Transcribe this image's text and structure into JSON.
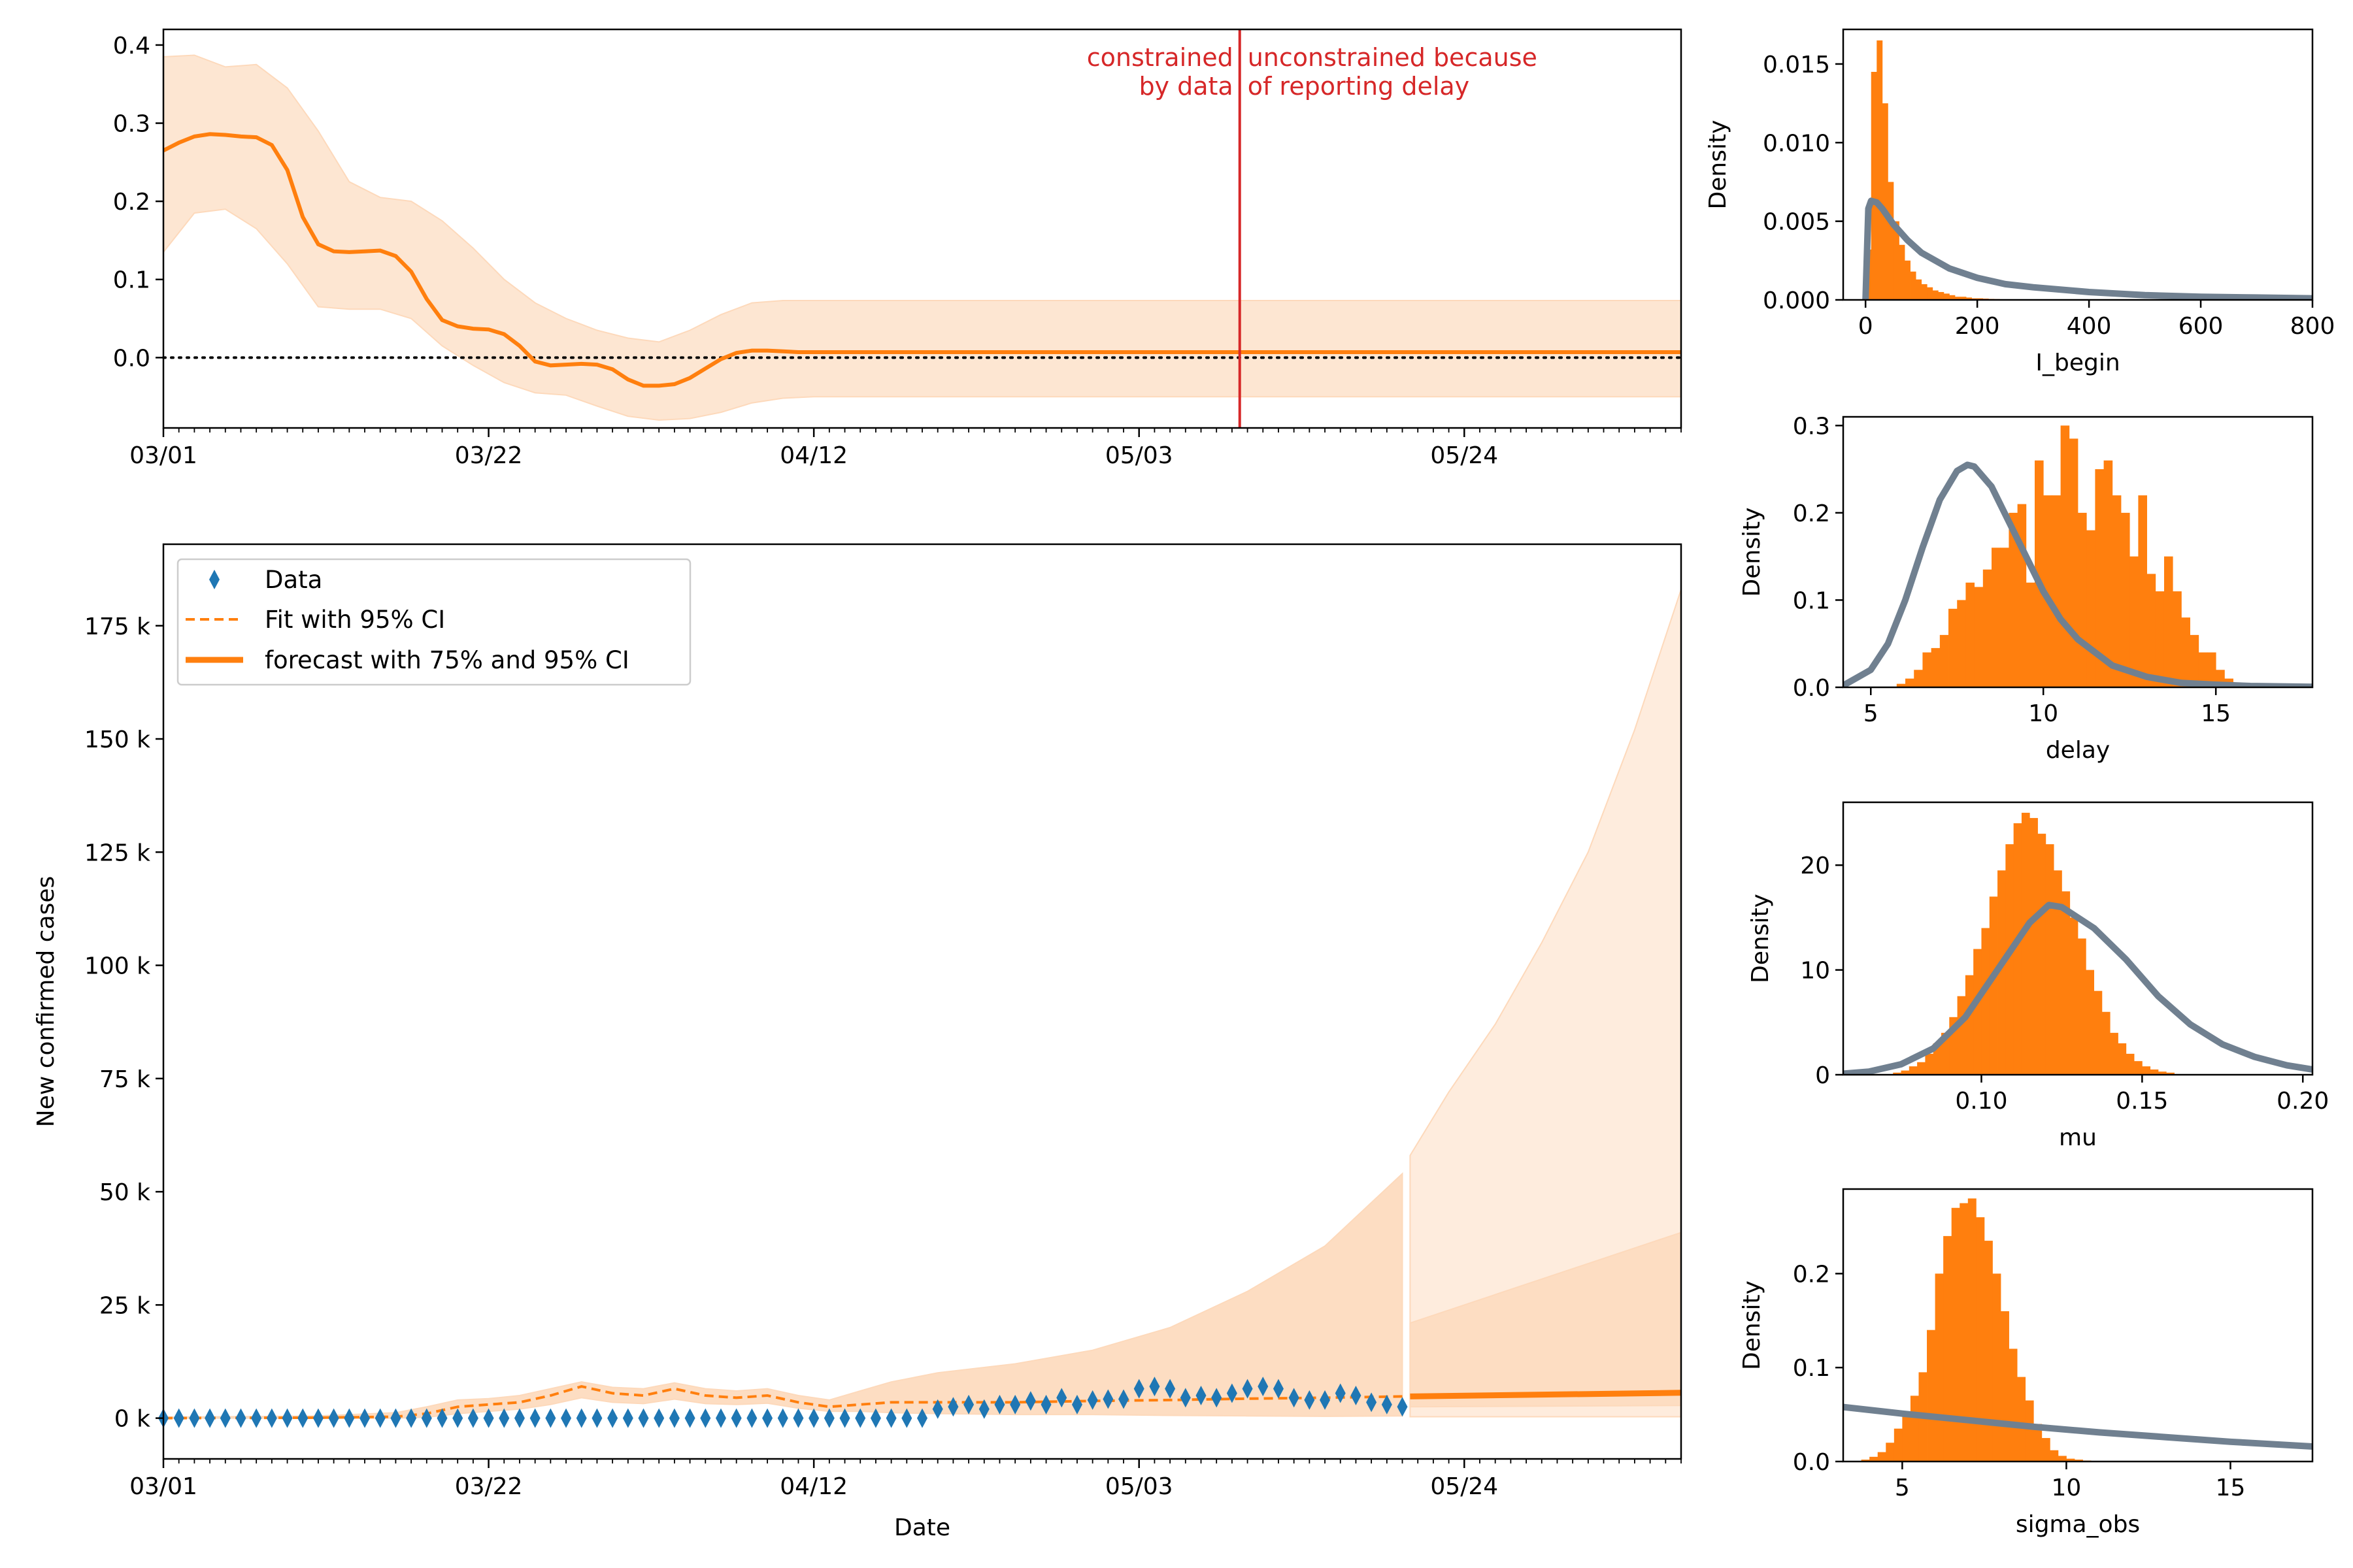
{
  "colors": {
    "orange": "#ff7f0e",
    "band": "#fdd9bb",
    "band_light": "#fde6d2",
    "data_marker": "#1f77b4",
    "prior_line": "#708090",
    "annotation": "#d62728",
    "text": "#000000"
  },
  "chart_data": [
    {
      "id": "growth_rate",
      "type": "line",
      "x_ticks": [
        "03/01",
        "03/22",
        "04/12",
        "05/03",
        "05/24"
      ],
      "x_range_days": [
        0,
        98
      ],
      "ylim": [
        -0.09,
        0.42
      ],
      "y_ticks": [
        "0.4",
        "0.3",
        "0.2",
        "0.1",
        "0.0"
      ],
      "y_tick_values": [
        0.4,
        0.3,
        0.2,
        0.1,
        0.0
      ],
      "zero_line": true,
      "marker_line_day": 69.5,
      "annotation_left": [
        "constrained",
        "by data"
      ],
      "annotation_right": [
        "unconstrained because",
        "of reporting delay"
      ],
      "series": [
        {
          "kind": "median",
          "x": [
            0,
            1,
            2,
            3,
            4,
            5,
            6,
            7,
            8,
            9,
            10,
            11,
            12,
            13,
            14,
            15,
            16,
            17,
            18,
            19,
            20,
            21,
            22,
            23,
            24,
            25,
            26,
            27,
            28,
            29,
            30,
            31,
            32,
            33,
            34,
            35,
            36,
            37,
            38,
            39,
            40,
            41,
            42,
            43,
            98
          ],
          "y": [
            0.265,
            0.275,
            0.283,
            0.286,
            0.285,
            0.283,
            0.282,
            0.272,
            0.24,
            0.18,
            0.145,
            0.136,
            0.135,
            0.136,
            0.137,
            0.13,
            0.11,
            0.075,
            0.048,
            0.04,
            0.037,
            0.036,
            0.03,
            0.015,
            -0.005,
            -0.01,
            -0.009,
            -0.008,
            -0.009,
            -0.015,
            -0.028,
            -0.036,
            -0.036,
            -0.034,
            -0.026,
            -0.014,
            -0.002,
            0.006,
            0.009,
            0.009,
            0.008,
            0.007,
            0.007,
            0.007,
            0.007
          ]
        },
        {
          "kind": "ci95",
          "x": [
            0,
            2,
            4,
            6,
            8,
            10,
            12,
            14,
            16,
            18,
            20,
            22,
            24,
            26,
            28,
            30,
            32,
            34,
            36,
            38,
            40,
            42,
            44,
            50,
            98
          ],
          "upper": [
            0.385,
            0.387,
            0.372,
            0.375,
            0.345,
            0.29,
            0.225,
            0.205,
            0.2,
            0.175,
            0.14,
            0.1,
            0.07,
            0.05,
            0.035,
            0.025,
            0.02,
            0.035,
            0.055,
            0.07,
            0.073,
            0.073,
            0.073,
            0.073,
            0.073
          ],
          "lower": [
            0.135,
            0.185,
            0.19,
            0.165,
            0.12,
            0.065,
            0.062,
            0.062,
            0.05,
            0.015,
            -0.01,
            -0.032,
            -0.045,
            -0.048,
            -0.062,
            -0.075,
            -0.08,
            -0.078,
            -0.07,
            -0.058,
            -0.052,
            -0.05,
            -0.05,
            -0.05,
            -0.05
          ]
        }
      ]
    },
    {
      "id": "new_cases",
      "type": "line",
      "x_ticks": [
        "03/01",
        "03/22",
        "04/12",
        "05/03",
        "05/24"
      ],
      "xlabel": "Date",
      "ylabel": "New confirmed cases",
      "x_range_days": [
        0,
        98
      ],
      "ylim": [
        -9000,
        193000
      ],
      "y_ticks": [
        "175 k",
        "150 k",
        "125 k",
        "100 k",
        "75 k",
        "50 k",
        "25 k",
        "0 k"
      ],
      "y_tick_values": [
        175000,
        150000,
        125000,
        100000,
        75000,
        50000,
        25000,
        0
      ],
      "legend": [
        "Data",
        "Fit with 95% CI",
        "forecast with 75% and 95% CI"
      ],
      "data_points": {
        "x": [
          0,
          1,
          2,
          3,
          4,
          5,
          6,
          7,
          8,
          9,
          10,
          11,
          12,
          13,
          14,
          15,
          16,
          17,
          18,
          19,
          20,
          21,
          22,
          23,
          24,
          25,
          26,
          27,
          28,
          29,
          30,
          31,
          32,
          33,
          34,
          35,
          36,
          37,
          38,
          39,
          40,
          41,
          42,
          43,
          44,
          45,
          46,
          47,
          48,
          49,
          50,
          51,
          52,
          53,
          54,
          55,
          56,
          57,
          58,
          59,
          60,
          61,
          62,
          63,
          64,
          65,
          66,
          67,
          68,
          69,
          70,
          71,
          72,
          73,
          74,
          75,
          76,
          77,
          78,
          79,
          80
        ],
        "y": [
          0,
          0,
          0,
          0,
          0,
          0,
          0,
          0,
          0,
          0,
          0,
          0,
          0,
          0,
          0,
          0,
          0,
          0,
          0,
          0,
          0,
          0,
          0,
          0,
          0,
          0,
          0,
          0,
          0,
          0,
          0,
          0,
          0,
          0,
          0,
          0,
          0,
          0,
          0,
          0,
          0,
          0,
          0,
          0,
          0,
          0,
          0,
          0,
          0,
          0,
          2000,
          2500,
          3000,
          2000,
          3000,
          3000,
          3800,
          3000,
          4500,
          3000,
          4000,
          4200,
          4200,
          6500,
          7000,
          6500,
          4500,
          5000,
          4500,
          5500,
          6500,
          7000,
          6500,
          4500,
          4000,
          4000,
          5500,
          5000,
          3500,
          3000,
          2500
        ]
      },
      "fit": {
        "x": [
          0,
          10,
          15,
          17,
          19,
          21,
          23,
          25,
          27,
          29,
          31,
          33,
          35,
          37,
          39,
          41,
          43,
          45,
          47,
          50,
          55,
          60,
          65,
          70,
          75,
          80
        ],
        "median": [
          0,
          100,
          300,
          1000,
          2500,
          3000,
          3500,
          5000,
          7000,
          5500,
          5000,
          6500,
          5000,
          4500,
          5000,
          3500,
          2500,
          3000,
          3500,
          3500,
          3500,
          3800,
          4000,
          4300,
          4500,
          4800
        ],
        "upper": [
          200,
          500,
          1200,
          2500,
          4000,
          4300,
          5000,
          6500,
          8000,
          6800,
          6500,
          7800,
          6500,
          6000,
          6500,
          5000,
          4000,
          6000,
          8000,
          10000,
          12000,
          15000,
          20000,
          28000,
          38000,
          54000
        ],
        "lower": [
          0,
          0,
          0,
          200,
          1000,
          1500,
          2000,
          3000,
          4500,
          3500,
          3200,
          4200,
          3200,
          3000,
          3300,
          2200,
          1500,
          1500,
          1200,
          1000,
          800,
          800,
          600,
          500,
          400,
          500
        ]
      },
      "forecast": {
        "x": [
          80.5,
          98
        ],
        "median": [
          4800,
          5600
        ],
        "ci75_upper": [
          21000,
          41000
        ],
        "ci75_lower": [
          2500,
          2800
        ],
        "ci95_upper_x": [
          80.5,
          83,
          86,
          89,
          92,
          95,
          98
        ],
        "ci95_upper": [
          58000,
          72000,
          87000,
          105000,
          125000,
          152000,
          183000
        ],
        "ci95_lower": [
          300,
          300
        ]
      }
    },
    {
      "id": "I_begin",
      "type": "histogram",
      "xlabel": "I_begin",
      "ylabel": "Density",
      "xlim": [
        -40,
        800
      ],
      "ylim": [
        0,
        0.0172
      ],
      "x_ticks": [
        "0",
        "200",
        "400",
        "600",
        "800"
      ],
      "x_tick_values": [
        0,
        200,
        400,
        600,
        800
      ],
      "y_ticks": [
        "0.015",
        "0.010",
        "0.005",
        "0.000"
      ],
      "y_tick_values": [
        0.015,
        0.01,
        0.005,
        0.0
      ],
      "bin_width": 10,
      "bin_start": 0,
      "densities": [
        0.0032,
        0.0145,
        0.0165,
        0.0125,
        0.0075,
        0.005,
        0.0035,
        0.0025,
        0.0018,
        0.0013,
        0.001,
        0.0008,
        0.0006,
        0.0005,
        0.0004,
        0.0003,
        0.0002,
        0.0002,
        0.00015,
        0.0001,
        0.0001,
        8e-05,
        6e-05,
        5e-05,
        4e-05,
        3e-05,
        2e-05,
        2e-05
      ],
      "prior": {
        "x": [
          0,
          5,
          10,
          20,
          30,
          50,
          75,
          100,
          150,
          200,
          250,
          300,
          400,
          500,
          600,
          700,
          800
        ],
        "y": [
          0,
          0.0058,
          0.0063,
          0.0062,
          0.0058,
          0.0048,
          0.0038,
          0.003,
          0.002,
          0.0014,
          0.001,
          0.0008,
          0.0005,
          0.0003,
          0.0002,
          0.00015,
          0.0001
        ]
      }
    },
    {
      "id": "delay",
      "type": "histogram",
      "xlabel": "delay",
      "ylabel": "Density",
      "xlim": [
        4.2,
        17.8
      ],
      "ylim": [
        0,
        0.31
      ],
      "x_ticks": [
        "5",
        "10",
        "15"
      ],
      "x_tick_values": [
        5,
        10,
        15
      ],
      "y_ticks": [
        "0.3",
        "0.2",
        "0.1",
        "0.0"
      ],
      "y_tick_values": [
        0.3,
        0.2,
        0.1,
        0.0
      ],
      "bin_width": 0.25,
      "bin_start": 5.75,
      "densities": [
        0.004,
        0.01,
        0.02,
        0.04,
        0.045,
        0.06,
        0.09,
        0.1,
        0.12,
        0.115,
        0.135,
        0.16,
        0.16,
        0.2,
        0.21,
        0.12,
        0.26,
        0.22,
        0.22,
        0.3,
        0.285,
        0.2,
        0.18,
        0.25,
        0.26,
        0.22,
        0.2,
        0.15,
        0.22,
        0.13,
        0.11,
        0.15,
        0.11,
        0.08,
        0.06,
        0.04,
        0.04,
        0.02,
        0.01,
        0.005
      ],
      "prior": {
        "x": [
          4.2,
          5,
          5.5,
          6,
          6.5,
          7,
          7.5,
          7.8,
          8,
          8.5,
          9,
          9.5,
          10,
          10.5,
          11,
          12,
          13,
          14,
          15,
          16,
          17.8
        ],
        "y": [
          0.002,
          0.02,
          0.05,
          0.1,
          0.16,
          0.215,
          0.248,
          0.255,
          0.253,
          0.23,
          0.19,
          0.15,
          0.11,
          0.078,
          0.055,
          0.025,
          0.012,
          0.005,
          0.003,
          0.0015,
          0.0005
        ]
      }
    },
    {
      "id": "mu",
      "type": "histogram",
      "xlabel": "mu",
      "ylabel": "Density",
      "xlim": [
        0.057,
        0.203
      ],
      "ylim": [
        0,
        26
      ],
      "x_ticks": [
        "0.10",
        "0.15",
        "0.20"
      ],
      "x_tick_values": [
        0.1,
        0.15,
        0.2
      ],
      "y_ticks": [
        "20",
        "10",
        "0"
      ],
      "y_tick_values": [
        20,
        10,
        0
      ],
      "bin_width": 0.0025,
      "bin_start": 0.0725,
      "densities": [
        0.2,
        0.4,
        0.8,
        1.2,
        2,
        3,
        4,
        5.5,
        7.5,
        9.5,
        12,
        14,
        17,
        19.5,
        22,
        24,
        25,
        24.5,
        23,
        22,
        19.5,
        17.5,
        15,
        13,
        10,
        8,
        6,
        4,
        3,
        2,
        1.3,
        0.8,
        0.5,
        0.3,
        0.2
      ],
      "prior": {
        "x": [
          0.057,
          0.065,
          0.075,
          0.085,
          0.095,
          0.105,
          0.115,
          0.121,
          0.125,
          0.135,
          0.145,
          0.155,
          0.165,
          0.175,
          0.185,
          0.195,
          0.203
        ],
        "y": [
          0.1,
          0.3,
          1,
          2.5,
          5.5,
          10,
          14.5,
          16.2,
          16,
          14,
          11,
          7.5,
          4.8,
          2.9,
          1.7,
          0.9,
          0.5
        ]
      }
    },
    {
      "id": "sigma_obs",
      "type": "histogram",
      "xlabel": "sigma_obs",
      "ylabel": "Density",
      "xlim": [
        3.2,
        17.5
      ],
      "ylim": [
        0,
        0.29
      ],
      "x_ticks": [
        "5",
        "10",
        "15"
      ],
      "x_tick_values": [
        5,
        10,
        15
      ],
      "y_ticks": [
        "0.2",
        "0.1",
        "0.0"
      ],
      "y_tick_values": [
        0.2,
        0.1,
        0.0
      ],
      "bin_width": 0.25,
      "bin_start": 3.75,
      "densities": [
        0.002,
        0.005,
        0.01,
        0.02,
        0.035,
        0.05,
        0.07,
        0.095,
        0.14,
        0.2,
        0.24,
        0.27,
        0.275,
        0.28,
        0.26,
        0.235,
        0.2,
        0.16,
        0.12,
        0.09,
        0.065,
        0.04,
        0.025,
        0.012,
        0.006,
        0.003,
        0.002,
        0.001
      ],
      "prior": {
        "x": [
          3.2,
          5,
          7,
          9,
          11,
          13,
          15,
          17.5
        ],
        "y": [
          0.058,
          0.051,
          0.044,
          0.037,
          0.031,
          0.026,
          0.021,
          0.016
        ]
      }
    }
  ]
}
